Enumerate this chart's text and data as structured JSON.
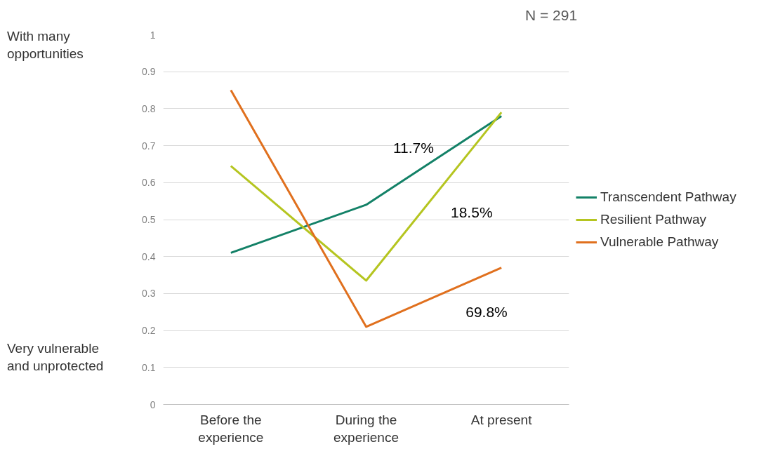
{
  "chart_data": {
    "type": "line",
    "categories": [
      "Before the experience",
      "During the experience",
      "At present"
    ],
    "series": [
      {
        "name": "Transcendent Pathway",
        "color": "#138167",
        "values": [
          0.41,
          0.54,
          0.78
        ]
      },
      {
        "name": "Resilient Pathway",
        "color": "#b5c520",
        "values": [
          0.645,
          0.335,
          0.79
        ]
      },
      {
        "name": "Vulnerable Pathway",
        "color": "#e0701e",
        "values": [
          0.85,
          0.21,
          0.37
        ]
      }
    ],
    "ylim": [
      0,
      1
    ],
    "yticks": [
      0,
      0.1,
      0.2,
      0.3,
      0.4,
      0.5,
      0.6,
      0.7,
      0.8,
      0.9,
      1
    ],
    "annotations": [
      "N = 291",
      "With many opportunities",
      "Very vulnerable and unprotected",
      "11.7%",
      "18.5%",
      "69.8%"
    ],
    "grid": "y",
    "legend": "right",
    "marker": "none",
    "line_style": "solid"
  }
}
